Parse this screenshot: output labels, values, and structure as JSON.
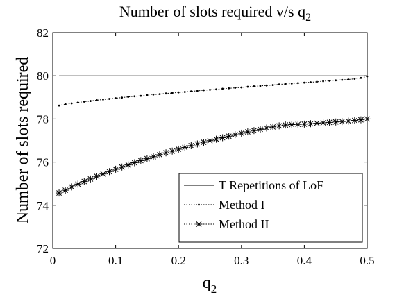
{
  "chart_data": {
    "type": "line",
    "title": "Number of slots required v/s q",
    "title_sub": "2",
    "xlabel": "q",
    "xlabel_sub": "2",
    "ylabel": "Number of slots required",
    "xlim": [
      0,
      0.5
    ],
    "ylim": [
      72,
      82
    ],
    "xticks": [
      "0",
      "0.1",
      "0.2",
      "0.3",
      "0.4",
      "0.5"
    ],
    "yticks": [
      "72",
      "74",
      "76",
      "78",
      "80",
      "82"
    ],
    "grid": false,
    "legend_position": "bottom-right",
    "series": [
      {
        "name": "T Repetitions of LoF",
        "style": "solid",
        "x": [
          0.01,
          0.5
        ],
        "y": [
          80,
          80
        ]
      },
      {
        "name": "Method I",
        "style": "dotted-point",
        "x": [
          0.01,
          0.02,
          0.03,
          0.04,
          0.05,
          0.06,
          0.07,
          0.08,
          0.09,
          0.1,
          0.11,
          0.12,
          0.13,
          0.14,
          0.15,
          0.16,
          0.17,
          0.18,
          0.19,
          0.2,
          0.21,
          0.22,
          0.23,
          0.24,
          0.25,
          0.26,
          0.27,
          0.28,
          0.29,
          0.3,
          0.31,
          0.32,
          0.33,
          0.34,
          0.35,
          0.36,
          0.37,
          0.38,
          0.39,
          0.4,
          0.41,
          0.42,
          0.43,
          0.44,
          0.45,
          0.46,
          0.47,
          0.48,
          0.49,
          0.5
        ],
        "y": [
          78.62,
          78.68,
          78.72,
          78.76,
          78.8,
          78.83,
          78.87,
          78.9,
          78.93,
          78.96,
          78.99,
          79.02,
          79.05,
          79.07,
          79.1,
          79.13,
          79.15,
          79.18,
          79.2,
          79.23,
          79.25,
          79.28,
          79.3,
          79.33,
          79.35,
          79.37,
          79.4,
          79.42,
          79.44,
          79.46,
          79.49,
          79.51,
          79.53,
          79.55,
          79.57,
          79.6,
          79.62,
          79.64,
          79.66,
          79.68,
          79.7,
          79.72,
          79.75,
          79.77,
          79.79,
          79.81,
          79.83,
          79.86,
          79.9,
          79.97
        ]
      },
      {
        "name": "Method II",
        "style": "dotted-asterisk",
        "x": [
          0.01,
          0.02,
          0.03,
          0.04,
          0.05,
          0.06,
          0.07,
          0.08,
          0.09,
          0.1,
          0.11,
          0.12,
          0.13,
          0.14,
          0.15,
          0.16,
          0.17,
          0.18,
          0.19,
          0.2,
          0.21,
          0.22,
          0.23,
          0.24,
          0.25,
          0.26,
          0.27,
          0.28,
          0.29,
          0.3,
          0.31,
          0.32,
          0.33,
          0.34,
          0.35,
          0.36,
          0.37,
          0.38,
          0.39,
          0.4,
          0.41,
          0.42,
          0.43,
          0.44,
          0.45,
          0.46,
          0.47,
          0.48,
          0.49,
          0.5
        ],
        "y": [
          74.57,
          74.7,
          74.85,
          74.98,
          75.1,
          75.22,
          75.34,
          75.45,
          75.56,
          75.67,
          75.77,
          75.87,
          75.97,
          76.07,
          76.16,
          76.25,
          76.34,
          76.43,
          76.51,
          76.6,
          76.68,
          76.76,
          76.84,
          76.92,
          76.99,
          77.06,
          77.13,
          77.2,
          77.27,
          77.34,
          77.4,
          77.46,
          77.52,
          77.58,
          77.63,
          77.68,
          77.72,
          77.74,
          77.75,
          77.76,
          77.78,
          77.8,
          77.82,
          77.84,
          77.86,
          77.88,
          77.9,
          77.93,
          77.96,
          78.0
        ]
      }
    ]
  }
}
